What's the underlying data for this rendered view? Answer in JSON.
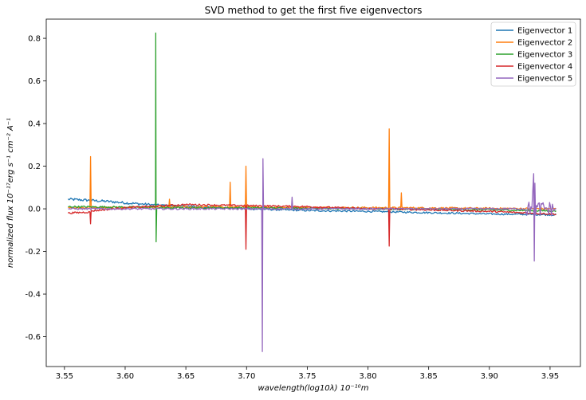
{
  "chart_data": {
    "type": "line",
    "title": "SVD method to get the first five eigenvectors",
    "xlabel": "wavelength(log10λ) 10⁻¹⁰m",
    "ylabel": "normalized flux 10⁻¹⁷erg s⁻¹ cm⁻² A⁻¹",
    "xlim": [
      3.535,
      3.975
    ],
    "ylim": [
      -0.74,
      0.89
    ],
    "xticks": [
      "3.55",
      "3.60",
      "3.65",
      "3.70",
      "3.75",
      "3.80",
      "3.85",
      "3.90",
      "3.95"
    ],
    "yticks": [
      "-0.6",
      "-0.4",
      "-0.2",
      "0.0",
      "0.2",
      "0.4",
      "0.6",
      "0.8"
    ],
    "grid": false,
    "legend_position": "top-right",
    "series": [
      {
        "name": "Eigenvector 1",
        "color": "#1f77b4",
        "x": [
          3.553,
          3.57,
          3.585,
          3.6,
          3.62,
          3.65,
          3.7,
          3.75,
          3.8,
          3.85,
          3.9,
          3.955
        ],
        "y": [
          0.045,
          0.04,
          0.035,
          0.028,
          0.02,
          0.012,
          0.0,
          -0.008,
          -0.012,
          -0.018,
          -0.024,
          -0.028
        ]
      },
      {
        "name": "Eigenvector 2",
        "color": "#ff7f0e",
        "x": [
          3.553,
          3.571,
          3.5715,
          3.572,
          3.636,
          3.6365,
          3.637,
          3.686,
          3.6865,
          3.687,
          3.699,
          3.6995,
          3.7,
          3.817,
          3.8175,
          3.818,
          3.827,
          3.8275,
          3.828,
          3.955
        ],
        "y": [
          0.005,
          0.005,
          0.245,
          0.005,
          0.008,
          0.045,
          0.008,
          0.008,
          0.125,
          0.008,
          0.008,
          0.2,
          0.008,
          0.005,
          0.375,
          0.005,
          0.005,
          0.075,
          0.005,
          0.0
        ]
      },
      {
        "name": "Eigenvector 3",
        "color": "#2ca02c",
        "x": [
          3.553,
          3.6,
          3.625,
          3.6252,
          3.6255,
          3.626,
          3.7,
          3.8,
          3.9,
          3.955
        ],
        "y": [
          0.01,
          0.008,
          0.008,
          0.825,
          -0.155,
          0.005,
          0.005,
          0.0,
          -0.005,
          -0.01
        ]
      },
      {
        "name": "Eigenvector 4",
        "color": "#d62728",
        "x": [
          3.553,
          3.571,
          3.5715,
          3.572,
          3.6,
          3.65,
          3.699,
          3.6995,
          3.7,
          3.75,
          3.8,
          3.817,
          3.8175,
          3.818,
          3.85,
          3.9,
          3.955
        ],
        "y": [
          -0.02,
          -0.015,
          -0.07,
          -0.01,
          0.005,
          0.02,
          0.015,
          -0.19,
          0.015,
          0.01,
          0.0,
          0.0,
          -0.175,
          0.0,
          -0.005,
          -0.012,
          -0.025
        ]
      },
      {
        "name": "Eigenvector 5",
        "color": "#9467bd",
        "x": [
          3.553,
          3.6,
          3.65,
          3.7,
          3.7125,
          3.713,
          3.7135,
          3.714,
          3.737,
          3.7375,
          3.738,
          3.8,
          3.85,
          3.9,
          3.935,
          3.9365,
          3.937,
          3.9375,
          3.938,
          3.945,
          3.955
        ],
        "y": [
          0.0,
          0.0,
          0.0,
          0.0,
          0.0,
          -0.67,
          0.235,
          0.0,
          0.0,
          0.055,
          0.0,
          0.0,
          0.0,
          0.0,
          0.0,
          0.165,
          -0.245,
          0.12,
          0.0,
          0.0,
          0.0
        ]
      }
    ]
  }
}
